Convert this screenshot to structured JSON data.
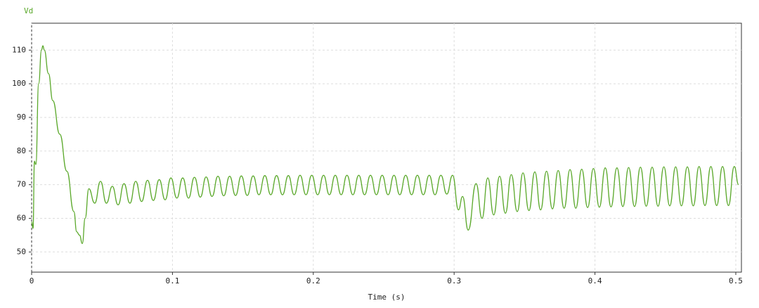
{
  "chart_data": {
    "type": "line",
    "xlabel": "Time (s)",
    "xlim": [
      0,
      0.504
    ],
    "ylim": [
      44,
      118
    ],
    "xticks": [
      0,
      0.1,
      0.2,
      0.3,
      0.4,
      0.5
    ],
    "yticks": [
      50,
      60,
      70,
      80,
      90,
      100,
      110
    ],
    "grid": true,
    "x": [
      0,
      0.001,
      0.002,
      0.003,
      0.005,
      0.007,
      0.008,
      0.009,
      0.012,
      0.015,
      0.02,
      0.025,
      0.03,
      0.032,
      0.034,
      0.036,
      0.038,
      0.0406,
      0.0448,
      0.0489,
      0.0531,
      0.0573,
      0.0614,
      0.0656,
      0.0698,
      0.0739,
      0.0781,
      0.0823,
      0.0864,
      0.0906,
      0.0948,
      0.0989,
      0.1031,
      0.1073,
      0.1114,
      0.1156,
      0.1198,
      0.1239,
      0.1281,
      0.1323,
      0.1364,
      0.1406,
      0.1448,
      0.1489,
      0.1531,
      0.1573,
      0.1614,
      0.1656,
      0.1698,
      0.1739,
      0.1781,
      0.1823,
      0.1864,
      0.1906,
      0.1948,
      0.1989,
      0.2031,
      0.2073,
      0.2114,
      0.2156,
      0.2198,
      0.2239,
      0.2281,
      0.2323,
      0.2364,
      0.2406,
      0.2448,
      0.2489,
      0.2531,
      0.2573,
      0.2614,
      0.2656,
      0.2698,
      0.2739,
      0.2781,
      0.2823,
      0.2864,
      0.2906,
      0.2948,
      0.2989,
      0.3031,
      0.306,
      0.31,
      0.3156,
      0.3198,
      0.3239,
      0.3281,
      0.3323,
      0.3364,
      0.3406,
      0.3448,
      0.3489,
      0.3531,
      0.3573,
      0.3614,
      0.3656,
      0.3698,
      0.3739,
      0.3781,
      0.3823,
      0.3864,
      0.3906,
      0.3948,
      0.3989,
      0.4031,
      0.4073,
      0.4114,
      0.4156,
      0.4198,
      0.4239,
      0.4281,
      0.4323,
      0.4364,
      0.4406,
      0.4448,
      0.4489,
      0.4531,
      0.4573,
      0.4614,
      0.4656,
      0.4698,
      0.4739,
      0.4781,
      0.4823,
      0.4864,
      0.4906,
      0.4948,
      0.4989,
      0.502
    ],
    "series": [
      {
        "name": "Vd",
        "color": "#5aa82a",
        "values": [
          59,
          57,
          77,
          76,
          100,
          110,
          111.3,
          110,
          103,
          95,
          85,
          74,
          62,
          56,
          55,
          52.5,
          60,
          68.8,
          64.5,
          71,
          64.5,
          69.5,
          64,
          70.3,
          64.5,
          71,
          65,
          71.3,
          65.3,
          71.5,
          65.5,
          72,
          66,
          72,
          66,
          72.2,
          66.3,
          72.3,
          66.5,
          72.5,
          66.7,
          72.5,
          66.8,
          72.6,
          66.8,
          72.6,
          67,
          72.7,
          67,
          72.7,
          67,
          72.7,
          67,
          72.8,
          67,
          72.8,
          67,
          72.8,
          67,
          72.8,
          67,
          72.8,
          67,
          72.8,
          67,
          72.8,
          67,
          72.8,
          67,
          72.8,
          67,
          72.8,
          67,
          72.8,
          67,
          72.8,
          67,
          72.8,
          67.2,
          72.8,
          62.5,
          66.5,
          56.5,
          70.3,
          60,
          72,
          61,
          72.5,
          61.5,
          73,
          62,
          73.5,
          62.3,
          73.8,
          62.5,
          74,
          62.8,
          74.2,
          63,
          74.5,
          63,
          74.6,
          63.2,
          74.8,
          63.3,
          75,
          63.4,
          75,
          63.5,
          75.1,
          63.5,
          75.2,
          63.6,
          75.2,
          63.6,
          75.3,
          63.7,
          75.3,
          63.7,
          75.3,
          63.7,
          75.4,
          63.8,
          75.4,
          63.8,
          75.4,
          63.8,
          75.4,
          70
        ]
      }
    ]
  }
}
